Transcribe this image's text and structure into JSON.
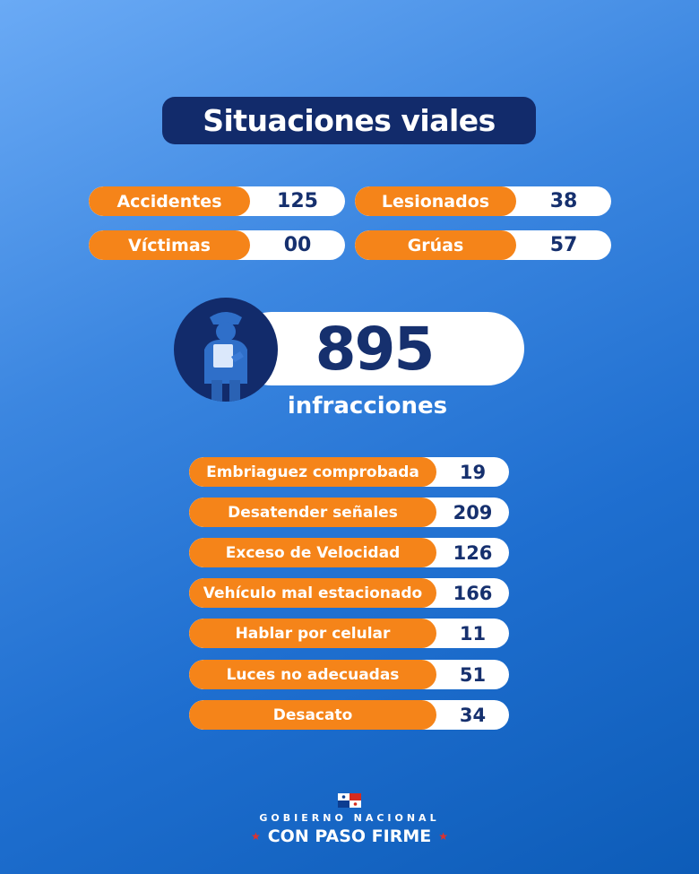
{
  "title": "Situaciones viales",
  "summary": [
    {
      "label": "Accidentes",
      "value": "125"
    },
    {
      "label": "Lesionados",
      "value": "38"
    },
    {
      "label": "Víctimas",
      "value": "00"
    },
    {
      "label": "Grúas",
      "value": "57"
    }
  ],
  "infracciones": {
    "total": "895",
    "label": "infracciones",
    "icon": "traffic-officer-icon",
    "items": [
      {
        "label": "Embriaguez comprobada",
        "value": "19"
      },
      {
        "label": "Desatender señales",
        "value": "209"
      },
      {
        "label": "Exceso de Velocidad",
        "value": "126"
      },
      {
        "label": "Vehículo mal estacionado",
        "value": "166"
      },
      {
        "label": "Hablar por celular",
        "value": "11"
      },
      {
        "label": "Luces no adecuadas",
        "value": "51"
      },
      {
        "label": "Desacato",
        "value": "34"
      }
    ]
  },
  "footer": {
    "line1": "GOBIERNO NACIONAL",
    "line2": "CON PASO FIRME",
    "flag_icon": "panama-flag-icon"
  },
  "colors": {
    "orange": "#f58419",
    "navy": "#122b6b",
    "white": "#ffffff",
    "background_top": "#6aaaf5",
    "background_bottom": "#0d5cb8"
  }
}
